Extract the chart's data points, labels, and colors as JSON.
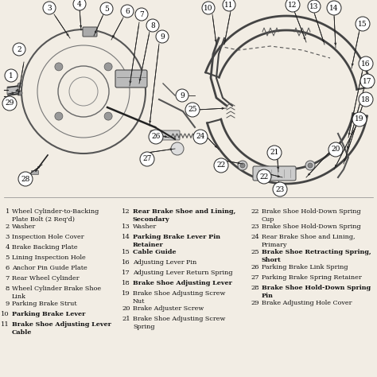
{
  "bg_color": "#f2ede4",
  "diagram_bg": "#ffffff",
  "text_color": "#111111",
  "line_color": "#222222",
  "parts": [
    {
      "num": 1,
      "bold": false,
      "line1": "Wheel Cylinder-to-Backing",
      "line2": "Plate Bolt (2 Req'd)"
    },
    {
      "num": 2,
      "bold": false,
      "line1": "Washer",
      "line2": ""
    },
    {
      "num": 3,
      "bold": false,
      "line1": "Inspection Hole Cover",
      "line2": ""
    },
    {
      "num": 4,
      "bold": false,
      "line1": "Brake Backing Plate",
      "line2": ""
    },
    {
      "num": 5,
      "bold": false,
      "line1": "Lining Inspection Hole",
      "line2": ""
    },
    {
      "num": 6,
      "bold": false,
      "line1": "Anchor Pin Guide Plate",
      "line2": ""
    },
    {
      "num": 7,
      "bold": false,
      "line1": "Rear Wheel Cylinder",
      "line2": ""
    },
    {
      "num": 8,
      "bold": false,
      "line1": "Wheel Cylinder Brake Shoe",
      "line2": "Link"
    },
    {
      "num": 9,
      "bold": false,
      "line1": "Parking Brake Strut",
      "line2": ""
    },
    {
      "num": 10,
      "bold": true,
      "line1": "Parking Brake Lever",
      "line2": ""
    },
    {
      "num": 11,
      "bold": true,
      "line1": "Brake Shoe Adjusting Lever",
      "line2": "Cable"
    },
    {
      "num": 12,
      "bold": true,
      "line1": "Rear Brake Shoe and Lining,",
      "line2": "Secondary"
    },
    {
      "num": 13,
      "bold": false,
      "line1": "Washer",
      "line2": ""
    },
    {
      "num": 14,
      "bold": true,
      "line1": "Parking Brake Lever Pin",
      "line2": "Retainer"
    },
    {
      "num": 15,
      "bold": true,
      "line1": "Cable Guide",
      "line2": ""
    },
    {
      "num": 16,
      "bold": false,
      "line1": "Adjusting Lever Pin",
      "line2": ""
    },
    {
      "num": 17,
      "bold": false,
      "line1": "Adjusting Lever Return Spring",
      "line2": ""
    },
    {
      "num": 18,
      "bold": true,
      "line1": "Brake Shoe Adjusting Lever",
      "line2": ""
    },
    {
      "num": 19,
      "bold": false,
      "line1": "Brake Shoe Adjusting Screw",
      "line2": "Nut"
    },
    {
      "num": 20,
      "bold": false,
      "line1": "Brake Adjuster Screw",
      "line2": ""
    },
    {
      "num": 21,
      "bold": false,
      "line1": "Brake Shoe Adjusting Screw",
      "line2": "Spring"
    },
    {
      "num": 22,
      "bold": false,
      "line1": "Brake Shoe Hold-Down Spring",
      "line2": "Cup"
    },
    {
      "num": 23,
      "bold": false,
      "line1": "Brake Shoe Hold-Down Spring",
      "line2": ""
    },
    {
      "num": 24,
      "bold": false,
      "line1": "Rear Brake Shoe and Lining,",
      "line2": "Primary"
    },
    {
      "num": 25,
      "bold": true,
      "line1": "Brake Shoe Retracting Spring,",
      "line2": "Short"
    },
    {
      "num": 26,
      "bold": false,
      "line1": "Parking Brake Link Spring",
      "line2": ""
    },
    {
      "num": 27,
      "bold": false,
      "line1": "Parking Brake Spring Retainer",
      "line2": ""
    },
    {
      "num": 28,
      "bold": true,
      "line1": "Brake Shoe Hold-Down Spring",
      "line2": "Pin"
    },
    {
      "num": 29,
      "bold": false,
      "line1": "Brake Adjusting Hole Cover",
      "line2": ""
    }
  ],
  "col1": [
    1,
    2,
    3,
    4,
    5,
    6,
    7,
    8,
    9,
    10,
    11
  ],
  "col2": [
    12,
    13,
    14,
    15,
    16,
    17,
    18,
    19,
    20,
    21
  ],
  "col3": [
    22,
    23,
    24,
    25,
    26,
    27,
    28,
    29
  ],
  "font_size": 5.8,
  "num_font_size": 6.0
}
